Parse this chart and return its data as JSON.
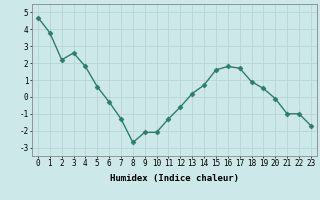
{
  "x": [
    0,
    1,
    2,
    3,
    4,
    5,
    6,
    7,
    8,
    9,
    10,
    11,
    12,
    13,
    14,
    15,
    16,
    17,
    18,
    19,
    20,
    21,
    22,
    23
  ],
  "y": [
    4.7,
    3.8,
    2.2,
    2.6,
    1.8,
    0.6,
    -0.3,
    -1.3,
    -2.7,
    -2.1,
    -2.1,
    -1.3,
    -0.6,
    0.2,
    0.7,
    1.6,
    1.8,
    1.7,
    0.9,
    0.5,
    -0.1,
    -1.0,
    -1.0,
    -1.7
  ],
  "line_color": "#2d7d6d",
  "marker": "D",
  "marker_size": 2.5,
  "bg_color": "#cde8e8",
  "grid_color": "#b8d4d4",
  "xlabel": "Humidex (Indice chaleur)",
  "xlim": [
    -0.5,
    23.5
  ],
  "ylim": [
    -3.5,
    5.5
  ],
  "yticks": [
    -3,
    -2,
    -1,
    0,
    1,
    2,
    3,
    4,
    5
  ],
  "xticks": [
    0,
    1,
    2,
    3,
    4,
    5,
    6,
    7,
    8,
    9,
    10,
    11,
    12,
    13,
    14,
    15,
    16,
    17,
    18,
    19,
    20,
    21,
    22,
    23
  ],
  "tick_fontsize": 5.5,
  "xlabel_fontsize": 6.5,
  "line_width": 1.0
}
